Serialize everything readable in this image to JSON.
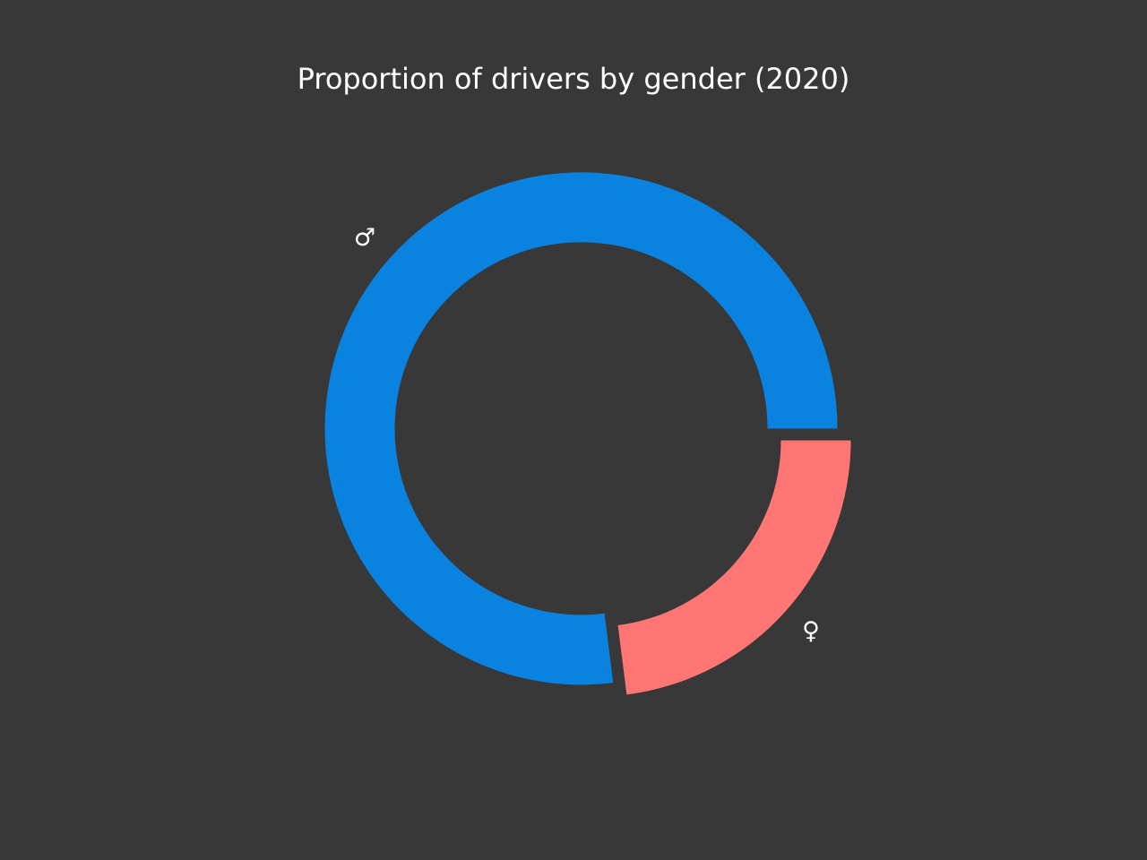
{
  "chart_data": {
    "type": "pie",
    "variant": "donut",
    "title": "Proportion of drivers by gender (2020)",
    "categories": [
      "♂",
      "♀"
    ],
    "values": [
      77,
      23
    ],
    "colors": [
      "#0a83e0",
      "#ff7675"
    ],
    "start_angle_deg": 0,
    "direction": "counterclockwise",
    "exploded": true,
    "legend": "none",
    "background": "#383838"
  }
}
